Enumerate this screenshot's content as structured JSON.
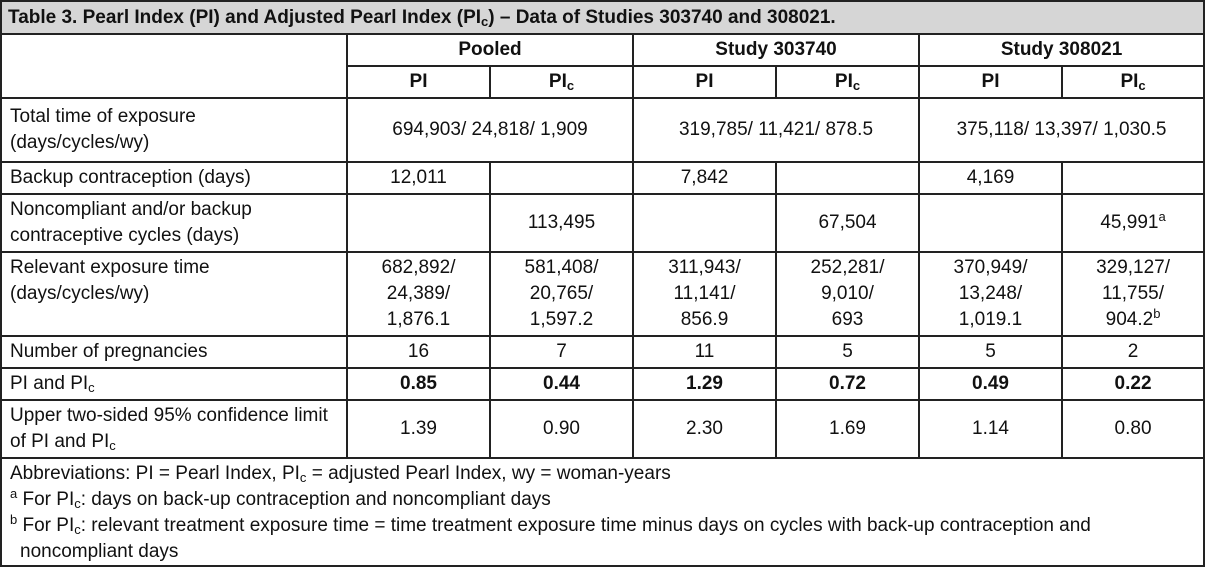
{
  "title": "Table 3. Pearl Index (PI) and Adjusted Pearl Index (PIc) – Data of Studies 303740 and 308021.",
  "title_parts": {
    "a": "Table 3. Pearl Index (PI) and Adjusted Pearl Index (PI",
    "sub": "c",
    "b": ") – Data of Studies 303740 and 308021."
  },
  "groups": [
    "Pooled",
    "Study 303740",
    "Study 308021"
  ],
  "col_pi": "PI",
  "col_pic_base": "PI",
  "col_pic_sub": "c",
  "rows": {
    "exposure": {
      "label": "Total time of exposure (days/cycles/wy)",
      "pooled": "694,903/ 24,818/ 1,909",
      "s303740": "319,785/ 11,421/ 878.5",
      "s308021": "375,118/ 13,397/ 1,030.5"
    },
    "backup": {
      "label": "Backup contraception (days)",
      "values": [
        "12,011",
        "",
        "7,842",
        "",
        "4,169",
        ""
      ]
    },
    "noncompliant": {
      "label": "Noncompliant and/or backup contraceptive cycles (days)",
      "values": [
        "",
        "113,495",
        "",
        "67,504",
        "",
        "45,991"
      ],
      "sup_last": "a"
    },
    "relevant": {
      "label": "Relevant exposure time (days/cycles/wy)",
      "values": [
        [
          "682,892/",
          "24,389/",
          "1,876.1"
        ],
        [
          "581,408/",
          "20,765/",
          "1,597.2"
        ],
        [
          "311,943/",
          "11,141/",
          "856.9"
        ],
        [
          "252,281/",
          "9,010/",
          "693"
        ],
        [
          "370,949/",
          "13,248/",
          "1,019.1"
        ],
        [
          "329,127/",
          "11,755/",
          "904.2"
        ]
      ],
      "sup_last": "b"
    },
    "pregnancies": {
      "label": "Number of pregnancies",
      "values": [
        "16",
        "7",
        "11",
        "5",
        "5",
        "2"
      ]
    },
    "pi": {
      "label_a": "PI and PI",
      "label_sub": "c",
      "values": [
        "0.85",
        "0.44",
        "1.29",
        "0.72",
        "0.49",
        "0.22"
      ]
    },
    "upper": {
      "label_a": "Upper two-sided 95% confidence limit of PI and PI",
      "label_sub": "c",
      "values": [
        "1.39",
        "0.90",
        "2.30",
        "1.69",
        "1.14",
        "0.80"
      ]
    }
  },
  "footnotes": {
    "abbrev": {
      "a": "Abbreviations: PI = Pearl Index, PI",
      "sub": "c",
      "b": " = adjusted Pearl Index, wy = woman-years"
    },
    "note_a": {
      "mark": "a",
      "a": " For PI",
      "sub": "c",
      "b": ": days on back-up contraception and noncompliant days"
    },
    "note_b": {
      "mark": "b",
      "a": " For PI",
      "sub": "c",
      "b": ": relevant treatment exposure time = time treatment exposure time minus days on cycles with back-up contraception and noncompliant days"
    }
  }
}
